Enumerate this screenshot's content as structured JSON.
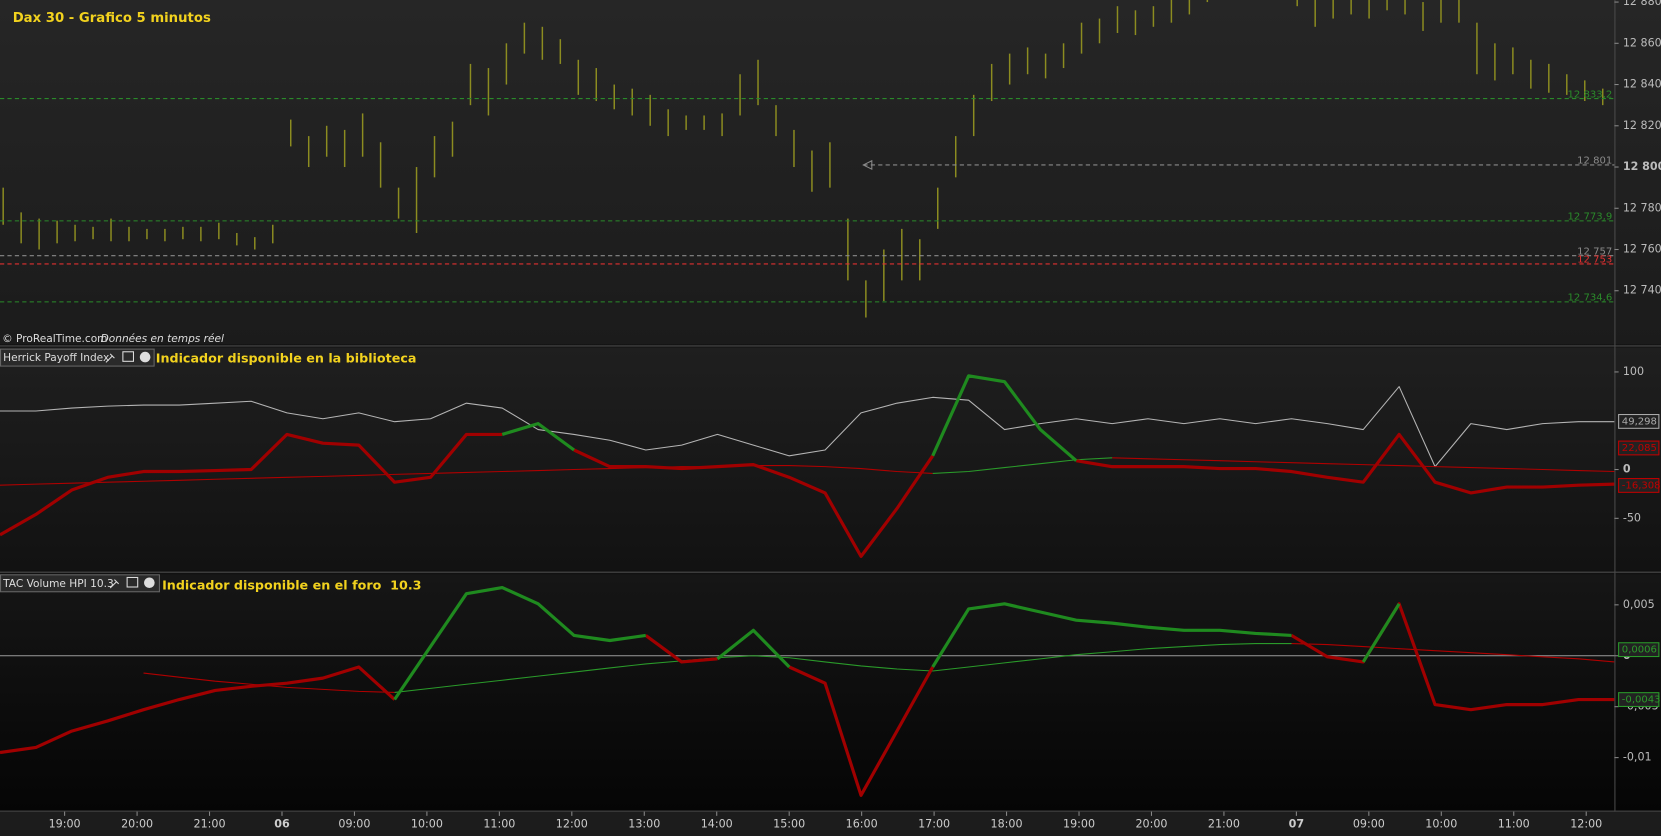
{
  "chart_data": [
    {
      "type": "ohlc",
      "title": "Dax 30 - Grafico 5 minutos",
      "source": "© ProRealTime.com",
      "note": "Données en temps réel",
      "color": "#8c8c20",
      "high": [
        12790,
        12778,
        12775,
        12774,
        12772,
        12771,
        12775,
        12771,
        12770,
        12770,
        12771,
        12771,
        12773,
        12768,
        12766,
        12772,
        12823,
        12815,
        12820,
        12818,
        12826,
        12812,
        12790,
        12800,
        12815,
        12822,
        12850,
        12848,
        12860,
        12870,
        12868,
        12862,
        12852,
        12848,
        12840,
        12838,
        12835,
        12828,
        12825,
        12825,
        12826,
        12845,
        12852,
        12830,
        12818,
        12808,
        12812,
        12775,
        12745,
        12760,
        12770,
        12765,
        12790,
        12815,
        12835,
        12850,
        12855,
        12858,
        12855,
        12860,
        12870,
        12872,
        12878,
        12876,
        12878,
        12882,
        12885,
        12890,
        12895,
        12898,
        12896,
        12892,
        12888,
        12882,
        12884,
        12886,
        12884,
        12886,
        12884,
        12880,
        12886,
        12885,
        12870,
        12860,
        12858,
        12852,
        12850,
        12845,
        12842,
        12838
      ],
      "low": [
        12772,
        12763,
        12760,
        12763,
        12764,
        12765,
        12764,
        12764,
        12765,
        12764,
        12765,
        12764,
        12765,
        12762,
        12760,
        12763,
        12810,
        12800,
        12805,
        12800,
        12805,
        12790,
        12775,
        12768,
        12795,
        12805,
        12830,
        12825,
        12840,
        12855,
        12852,
        12850,
        12835,
        12832,
        12828,
        12825,
        12820,
        12815,
        12818,
        12818,
        12815,
        12825,
        12830,
        12815,
        12800,
        12788,
        12790,
        12745,
        12727,
        12735,
        12745,
        12745,
        12770,
        12795,
        12815,
        12832,
        12840,
        12845,
        12843,
        12848,
        12855,
        12860,
        12865,
        12864,
        12868,
        12870,
        12874,
        12880,
        12884,
        12886,
        12885,
        12884,
        12878,
        12868,
        12872,
        12874,
        12872,
        12876,
        12874,
        12866,
        12870,
        12870,
        12845,
        12842,
        12845,
        12838,
        12836,
        12835,
        12832,
        12830
      ],
      "ylim": [
        12714,
        12881
      ],
      "yticks": [
        {
          "value": 12740,
          "label": "12 740"
        },
        {
          "value": 12760,
          "label": "12 760"
        },
        {
          "value": 12780,
          "label": "12 780"
        },
        {
          "value": 12800,
          "label": "12 800",
          "bold": true
        },
        {
          "value": 12820,
          "label": "12 820"
        },
        {
          "value": 12840,
          "label": "12 840"
        },
        {
          "value": 12860,
          "label": "12 860"
        },
        {
          "value": 12880,
          "label": "12 880"
        }
      ],
      "levels": [
        {
          "value": 12833.2,
          "label": "12 833,2",
          "color": "#2a8a2a"
        },
        {
          "value": 12801,
          "label": "12 801",
          "color": "#8a8a8a",
          "arrow": true
        },
        {
          "value": 12773.9,
          "label": "12 773,9",
          "color": "#2a8a2a"
        },
        {
          "value": 12757,
          "label": "12 757",
          "color": "#8a8a8a"
        },
        {
          "value": 12753,
          "label": "12 753",
          "color": "#e03030"
        },
        {
          "value": 12734.6,
          "label": "12 734,6",
          "color": "#2a8a2a"
        }
      ]
    },
    {
      "type": "line",
      "title": "Herrick Payoff Index",
      "subtitle": "Indicador disponible en la biblioteca",
      "ylim": [
        -103,
        125
      ],
      "yticks": [
        -50,
        0,
        100
      ],
      "series": [
        {
          "color": "#b4b4b4",
          "width": 1,
          "values": [
            60,
            60,
            63,
            65,
            66,
            66,
            68,
            70,
            58,
            52,
            58,
            49,
            52,
            68,
            63,
            41,
            36,
            30,
            20,
            25,
            36,
            25,
            14,
            20,
            58,
            68,
            74,
            71,
            41,
            47,
            52,
            47,
            52,
            47,
            52,
            47,
            52,
            47,
            41,
            85,
            3,
            47,
            41,
            47,
            49,
            49
          ]
        },
        {
          "color": "#b00000",
          "width": 1,
          "values": [
            -16,
            -15,
            -14,
            -13,
            -12,
            -11,
            -10,
            -9,
            -8,
            -7,
            -6,
            -5,
            -4,
            -3,
            -2,
            -1,
            0,
            1,
            2,
            3,
            3,
            4,
            4,
            3,
            1,
            -2,
            -4,
            null,
            null,
            null,
            null,
            12,
            11,
            10,
            9,
            8,
            7,
            6,
            5,
            4,
            3,
            2,
            1,
            0,
            -1,
            -2
          ]
        },
        {
          "color": "#2a9a2a",
          "width": 1,
          "values": [
            null,
            null,
            null,
            null,
            null,
            null,
            null,
            null,
            null,
            null,
            null,
            null,
            null,
            null,
            null,
            null,
            null,
            null,
            null,
            null,
            null,
            null,
            null,
            null,
            null,
            null,
            -4,
            -2,
            2,
            6,
            10,
            12,
            null,
            null,
            null,
            null,
            null,
            null,
            null,
            null,
            null,
            null,
            null,
            null,
            null,
            null
          ]
        },
        {
          "color": "#a00000",
          "width": 3,
          "values": [
            -67,
            -46,
            -21,
            -8,
            -2,
            -2,
            -1,
            0,
            36,
            27,
            25,
            -13,
            -8,
            36,
            36,
            null,
            20,
            3,
            3,
            1,
            3,
            5,
            -8,
            -24,
            -89,
            -40,
            14,
            null,
            null,
            null,
            9,
            3,
            3,
            3,
            1,
            1,
            -2,
            -8,
            -13,
            36,
            -13,
            -24,
            -18,
            -18,
            -16,
            -15
          ]
        },
        {
          "color": "#1f8a1f",
          "width": 3,
          "values": [
            null,
            null,
            null,
            null,
            null,
            null,
            null,
            null,
            null,
            null,
            null,
            null,
            null,
            null,
            36,
            47,
            20,
            null,
            null,
            null,
            null,
            null,
            null,
            null,
            null,
            null,
            14,
            96,
            90,
            41,
            9,
            null,
            null,
            null,
            null,
            null,
            null,
            null,
            null,
            null,
            null,
            null,
            null,
            null,
            null,
            null
          ]
        }
      ],
      "last_labels": [
        {
          "value": 49.298,
          "label": "49,298",
          "color": "#aaaaaa"
        },
        {
          "value": 22.085,
          "label": "22,085",
          "color": "#c00000"
        },
        {
          "value": -16.308,
          "label": "-16,308",
          "color": "#c00000"
        }
      ]
    },
    {
      "type": "line",
      "title": "TAC Volume HPI 10.3",
      "subtitle": "Indicador disponible en el foro  10.3",
      "ylim": [
        -0.0152,
        0.008
      ],
      "zero_line": true,
      "yticks": [
        {
          "value": -0.01,
          "label": "-0,01"
        },
        {
          "value": -0.005,
          "label": "-0,005"
        },
        0,
        {
          "value": 0.005,
          "label": "0,005"
        }
      ],
      "series": [
        {
          "color": "#b00000",
          "width": 1,
          "values": [
            null,
            null,
            null,
            null,
            -0.0017,
            -0.0021,
            -0.0025,
            -0.0028,
            -0.0031,
            -0.0033,
            -0.0035,
            -0.0036,
            null,
            null,
            null,
            null,
            null,
            null,
            null,
            null,
            null,
            null,
            null,
            null,
            null,
            null,
            null,
            null,
            null,
            null,
            null,
            null,
            null,
            null,
            null,
            null,
            0.0012,
            0.0011,
            0.0009,
            0.0007,
            0.0005,
            0.0003,
            0.0001,
            -0.0001,
            -0.0003,
            -0.0006
          ]
        },
        {
          "color": "#2a9a2a",
          "width": 1,
          "values": [
            null,
            null,
            null,
            null,
            null,
            null,
            null,
            null,
            null,
            null,
            null,
            -0.0036,
            -0.0032,
            -0.0028,
            -0.0024,
            -0.002,
            -0.0016,
            -0.0012,
            -0.0008,
            -0.0005,
            -0.0002,
            0,
            -0.0002,
            -0.0006,
            -0.001,
            -0.0013,
            -0.0015,
            -0.0011,
            -0.0007,
            -0.0003,
            0.0001,
            0.0004,
            0.0007,
            0.0009,
            0.0011,
            0.0012,
            0.0012,
            null,
            null,
            null,
            null,
            null,
            null,
            null,
            null,
            null
          ]
        },
        {
          "color": "#a00000",
          "width": 3,
          "values": [
            -0.0095,
            -0.009,
            -0.0074,
            -0.0064,
            -0.0053,
            -0.0043,
            -0.0034,
            -0.003,
            -0.0027,
            -0.0022,
            -0.0011,
            -0.0043,
            null,
            null,
            null,
            null,
            null,
            null,
            0.002,
            -0.0006,
            -0.0003,
            null,
            -0.0011,
            -0.0027,
            -0.0137,
            -0.0074,
            -0.0011,
            null,
            null,
            null,
            null,
            null,
            null,
            null,
            null,
            null,
            0.002,
            -0.0001,
            -0.0006,
            0.0051,
            -0.0048,
            -0.0053,
            -0.0048,
            -0.0048,
            -0.0043,
            -0.0043
          ]
        },
        {
          "color": "#1f8a1f",
          "width": 3,
          "values": [
            null,
            null,
            null,
            null,
            null,
            null,
            null,
            null,
            null,
            null,
            null,
            -0.0043,
            0.0009,
            0.0061,
            0.0067,
            0.0051,
            0.002,
            0.0015,
            0.002,
            null,
            -0.0003,
            0.0025,
            -0.0011,
            null,
            null,
            null,
            -0.0011,
            0.0046,
            0.0051,
            0.0043,
            0.0035,
            0.0032,
            0.0028,
            0.0025,
            0.0025,
            0.0022,
            0.002,
            null,
            -0.0006,
            0.0051,
            null,
            null,
            null,
            null,
            null,
            null
          ]
        }
      ],
      "last_labels": [
        {
          "value": 0.0006,
          "label": "0,0006",
          "color": "#2a9a2a"
        },
        {
          "value": -0.0043,
          "label": "-0,0043",
          "color": "#2a9a2a"
        }
      ]
    }
  ],
  "time_axis": {
    "labels": [
      "19:00",
      "20:00",
      "21:00",
      "06",
      "09:00",
      "10:00",
      "11:00",
      "12:00",
      "13:00",
      "14:00",
      "15:00",
      "16:00",
      "17:00",
      "18:00",
      "19:00",
      "20:00",
      "21:00",
      "07",
      "09:00",
      "10:00",
      "11:00",
      "12:00"
    ]
  }
}
